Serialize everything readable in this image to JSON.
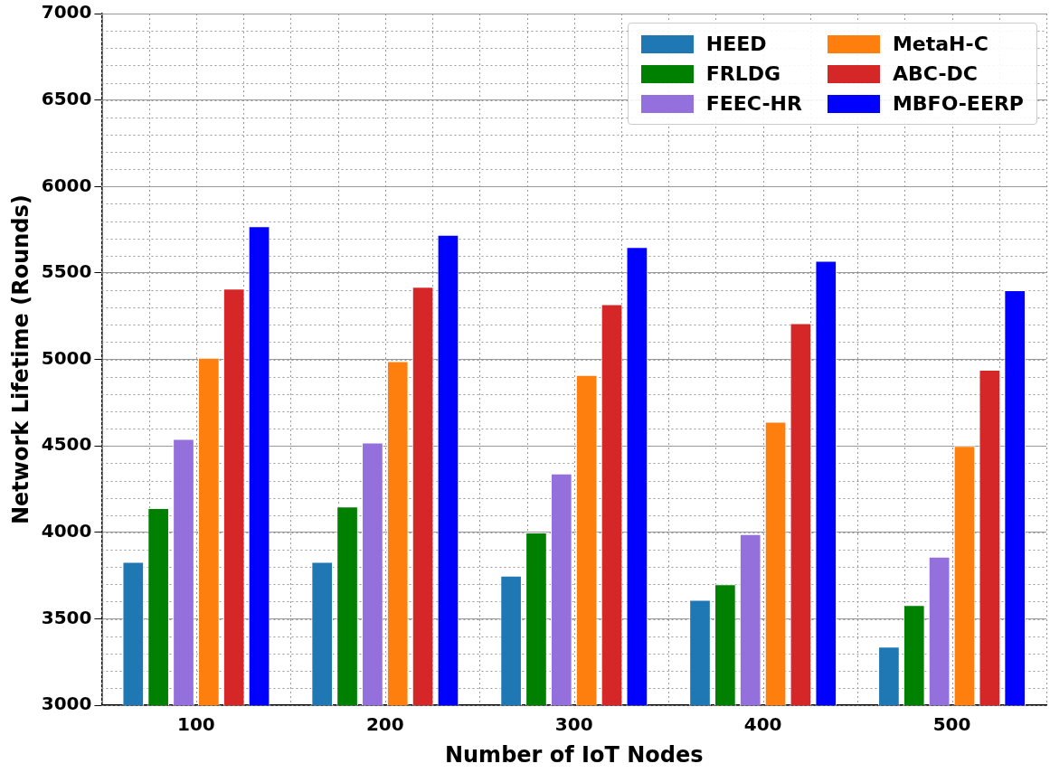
{
  "chart_data": {
    "type": "bar",
    "xlabel": "Number of IoT Nodes",
    "ylabel": "Network Lifetime (Rounds)",
    "categories": [
      "100",
      "200",
      "300",
      "400",
      "500"
    ],
    "series": [
      {
        "name": "HEED",
        "color": "#1f77b4",
        "values": [
          3830,
          3830,
          3750,
          3610,
          3340
        ]
      },
      {
        "name": "FRLDG",
        "color": "#008000",
        "values": [
          4140,
          4150,
          4000,
          3700,
          3580
        ]
      },
      {
        "name": "FEEC-HR",
        "color": "#9370db",
        "values": [
          4540,
          4520,
          4340,
          3990,
          3860
        ]
      },
      {
        "name": "MetaH-C",
        "color": "#ff7f0e",
        "values": [
          5010,
          4990,
          4910,
          4640,
          4500
        ]
      },
      {
        "name": "ABC-DC",
        "color": "#d62728",
        "values": [
          5410,
          5420,
          5320,
          5210,
          4940
        ]
      },
      {
        "name": "MBFO-EERP",
        "color": "#0000ff",
        "values": [
          5770,
          5720,
          5650,
          5570,
          5400
        ]
      }
    ],
    "ylim": [
      3000,
      7000
    ],
    "yticks": [
      3000,
      3500,
      4000,
      4500,
      5000,
      5500,
      6000,
      6500,
      7000
    ],
    "grid": true,
    "legend": "top right"
  }
}
